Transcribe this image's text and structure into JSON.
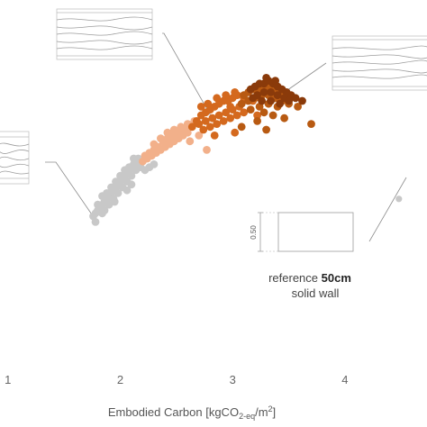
{
  "chart_data": {
    "type": "scatter",
    "title": "",
    "xlabel_parts": {
      "main": "Embodied Carbon [kgCO",
      "sub": "2-eq",
      "mid": "/m",
      "sup": "2",
      "end": "]"
    },
    "ylabel": "",
    "x_ticks": [
      1,
      2,
      3,
      4
    ],
    "xlim": [
      0.93,
      4.73
    ],
    "ylim": [
      0,
      1
    ],
    "grid": false,
    "legend": "none",
    "series": [
      {
        "color": "#c8c8c8",
        "points": [
          [
            1.76,
            0.5
          ],
          [
            1.78,
            0.51
          ],
          [
            1.8,
            0.52
          ],
          [
            1.82,
            0.53
          ],
          [
            1.84,
            0.54
          ],
          [
            1.86,
            0.55
          ],
          [
            1.88,
            0.56
          ],
          [
            1.9,
            0.57
          ],
          [
            1.92,
            0.58
          ],
          [
            1.94,
            0.59
          ],
          [
            1.96,
            0.6
          ],
          [
            1.98,
            0.61
          ],
          [
            2.0,
            0.62
          ],
          [
            2.02,
            0.63
          ],
          [
            2.04,
            0.64
          ],
          [
            2.06,
            0.65
          ],
          [
            2.08,
            0.66
          ],
          [
            2.1,
            0.67
          ],
          [
            2.12,
            0.68
          ],
          [
            2.14,
            0.69
          ],
          [
            2.16,
            0.7
          ],
          [
            1.8,
            0.54
          ],
          [
            1.84,
            0.57
          ],
          [
            1.88,
            0.58
          ],
          [
            1.92,
            0.6
          ],
          [
            1.96,
            0.62
          ],
          [
            2.0,
            0.64
          ],
          [
            2.04,
            0.66
          ],
          [
            2.08,
            0.67
          ],
          [
            2.12,
            0.7
          ],
          [
            1.86,
            0.52
          ],
          [
            1.9,
            0.54
          ],
          [
            1.94,
            0.56
          ],
          [
            1.98,
            0.58
          ],
          [
            2.02,
            0.6
          ],
          [
            2.06,
            0.62
          ],
          [
            2.1,
            0.64
          ],
          [
            2.14,
            0.66
          ],
          [
            2.18,
            0.67
          ],
          [
            2.22,
            0.66
          ],
          [
            2.26,
            0.67
          ],
          [
            2.3,
            0.68
          ],
          [
            2.06,
            0.59
          ],
          [
            2.1,
            0.61
          ],
          [
            1.84,
            0.51
          ],
          [
            1.78,
            0.48
          ],
          [
            1.95,
            0.55
          ]
        ]
      },
      {
        "color": "#f2b08a",
        "points": [
          [
            2.22,
            0.71
          ],
          [
            2.26,
            0.72
          ],
          [
            2.3,
            0.73
          ],
          [
            2.34,
            0.74
          ],
          [
            2.38,
            0.76
          ],
          [
            2.42,
            0.77
          ],
          [
            2.46,
            0.78
          ],
          [
            2.5,
            0.79
          ],
          [
            2.54,
            0.8
          ],
          [
            2.58,
            0.8
          ],
          [
            2.2,
            0.69
          ],
          [
            2.24,
            0.7
          ],
          [
            2.28,
            0.71
          ],
          [
            2.32,
            0.72
          ],
          [
            2.36,
            0.73
          ],
          [
            2.4,
            0.74
          ],
          [
            2.44,
            0.75
          ],
          [
            2.48,
            0.76
          ],
          [
            2.52,
            0.77
          ],
          [
            2.56,
            0.78
          ],
          [
            2.6,
            0.79
          ],
          [
            2.3,
            0.75
          ],
          [
            2.36,
            0.77
          ],
          [
            2.42,
            0.79
          ],
          [
            2.48,
            0.8
          ],
          [
            2.54,
            0.81
          ],
          [
            2.6,
            0.82
          ],
          [
            2.66,
            0.83
          ],
          [
            2.62,
            0.76
          ],
          [
            2.7,
            0.78
          ],
          [
            2.77,
            0.73
          ]
        ]
      },
      {
        "color": "#d4691e",
        "points": [
          [
            2.68,
            0.83
          ],
          [
            2.72,
            0.85
          ],
          [
            2.76,
            0.86
          ],
          [
            2.8,
            0.87
          ],
          [
            2.84,
            0.88
          ],
          [
            2.88,
            0.89
          ],
          [
            2.92,
            0.9
          ],
          [
            2.96,
            0.9
          ],
          [
            3.0,
            0.91
          ],
          [
            3.04,
            0.92
          ],
          [
            2.64,
            0.81
          ],
          [
            2.7,
            0.82
          ],
          [
            2.76,
            0.83
          ],
          [
            2.82,
            0.84
          ],
          [
            2.88,
            0.85
          ],
          [
            2.94,
            0.86
          ],
          [
            3.0,
            0.87
          ],
          [
            3.06,
            0.88
          ],
          [
            2.74,
            0.8
          ],
          [
            2.8,
            0.81
          ],
          [
            2.86,
            0.82
          ],
          [
            2.92,
            0.83
          ],
          [
            2.98,
            0.84
          ],
          [
            3.04,
            0.85
          ],
          [
            3.1,
            0.86
          ],
          [
            2.72,
            0.88
          ],
          [
            2.78,
            0.89
          ],
          [
            2.86,
            0.91
          ],
          [
            2.94,
            0.92
          ],
          [
            3.02,
            0.93
          ],
          [
            3.1,
            0.91
          ],
          [
            3.18,
            0.9
          ],
          [
            2.84,
            0.78
          ],
          [
            3.02,
            0.79
          ],
          [
            3.22,
            0.85
          ],
          [
            2.98,
            0.88
          ]
        ]
      },
      {
        "color": "#b85a12",
        "points": [
          [
            3.1,
            0.92
          ],
          [
            3.14,
            0.93
          ],
          [
            3.18,
            0.94
          ],
          [
            3.22,
            0.94
          ],
          [
            3.26,
            0.95
          ],
          [
            3.3,
            0.95
          ],
          [
            3.34,
            0.95
          ],
          [
            3.38,
            0.94
          ],
          [
            3.42,
            0.93
          ],
          [
            3.46,
            0.92
          ],
          [
            3.08,
            0.89
          ],
          [
            3.14,
            0.9
          ],
          [
            3.2,
            0.91
          ],
          [
            3.26,
            0.92
          ],
          [
            3.32,
            0.92
          ],
          [
            3.38,
            0.91
          ],
          [
            3.44,
            0.9
          ],
          [
            3.5,
            0.89
          ],
          [
            3.16,
            0.87
          ],
          [
            3.24,
            0.88
          ],
          [
            3.32,
            0.89
          ],
          [
            3.4,
            0.88
          ],
          [
            3.28,
            0.86
          ],
          [
            3.36,
            0.85
          ],
          [
            3.46,
            0.84
          ],
          [
            3.58,
            0.88
          ],
          [
            3.7,
            0.82
          ],
          [
            3.22,
            0.83
          ],
          [
            3.08,
            0.81
          ],
          [
            3.3,
            0.8
          ]
        ]
      },
      {
        "color": "#8a3a0a",
        "points": [
          [
            3.16,
            0.94
          ],
          [
            3.2,
            0.95
          ],
          [
            3.24,
            0.96
          ],
          [
            3.28,
            0.96
          ],
          [
            3.32,
            0.97
          ],
          [
            3.36,
            0.96
          ],
          [
            3.4,
            0.95
          ],
          [
            3.44,
            0.94
          ],
          [
            3.48,
            0.93
          ],
          [
            3.52,
            0.92
          ],
          [
            3.22,
            0.92
          ],
          [
            3.28,
            0.93
          ],
          [
            3.34,
            0.93
          ],
          [
            3.4,
            0.92
          ],
          [
            3.46,
            0.91
          ],
          [
            3.56,
            0.91
          ],
          [
            3.62,
            0.9
          ],
          [
            3.18,
            0.91
          ],
          [
            3.26,
            0.9
          ],
          [
            3.34,
            0.9
          ],
          [
            3.42,
            0.89
          ],
          [
            3.5,
            0.9
          ],
          [
            3.38,
            0.97
          ],
          [
            3.3,
            0.98
          ]
        ]
      }
    ],
    "reference": {
      "color": "#c8c8c8",
      "label_prefix": "reference ",
      "label_bold": "50cm",
      "label_line2": "solid wall",
      "thickness_label": "0.50",
      "point": [
        4.48,
        0.56
      ]
    }
  }
}
